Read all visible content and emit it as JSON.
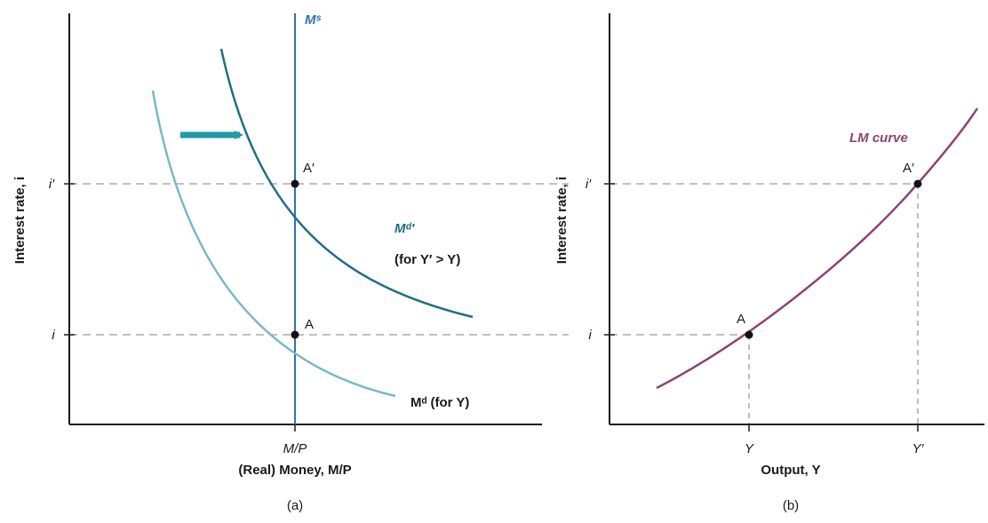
{
  "colors": {
    "axis": "#1a1a1a",
    "money_supply": "#2f72b4",
    "demand_old": "#7ab8c9",
    "demand_new": "#1f6f86",
    "arrow": "#1f9aa8",
    "lm_curve": "#8f4275",
    "guide": "#9a9a9a",
    "point": "#111111"
  },
  "panel_a": {
    "caption": "(a)",
    "y_axis_label": "Interest rate, i",
    "x_axis_label": "(Real) Money, M/P",
    "x_tick": "M/P",
    "y_ticks": [
      "i′",
      "i"
    ],
    "money_supply_label": "Mˢ",
    "demand_new_label": "Mᵈ′",
    "demand_new_note": "(for Y′ > Y)",
    "demand_old_label": "Mᵈ (for Y)",
    "point_upper": "A′",
    "point_lower": "A"
  },
  "panel_b": {
    "caption": "(b)",
    "y_axis_label": "Interest rate, i",
    "x_axis_label": "Output, Y",
    "x_ticks": [
      "Y",
      "Y′"
    ],
    "y_ticks": [
      "i′",
      "i"
    ],
    "curve_label": "LM curve",
    "point_upper": "A′",
    "point_lower": "A"
  }
}
